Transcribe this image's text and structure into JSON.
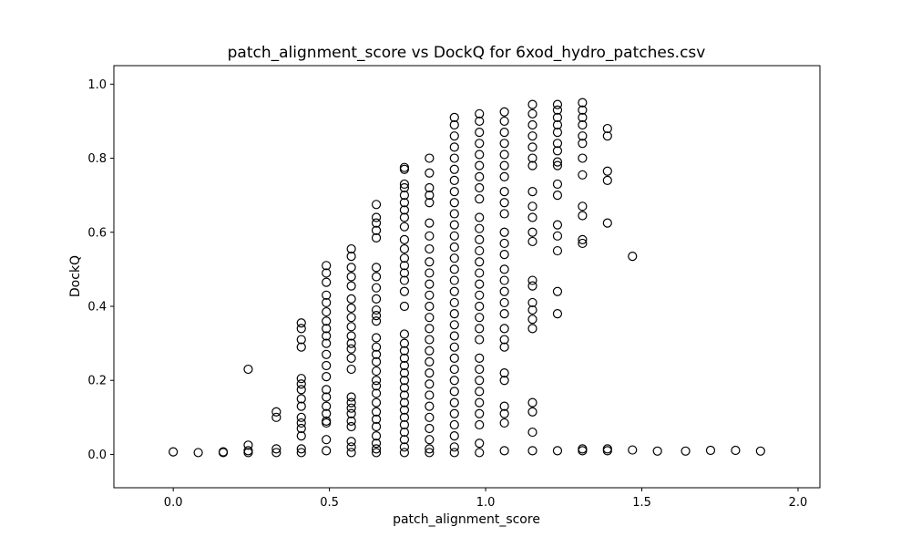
{
  "chart_data": {
    "type": "scatter",
    "title": "patch_alignment_score vs DockQ for 6xod_hydro_patches.csv",
    "xlabel": "patch_alignment_score",
    "ylabel": "DockQ",
    "xlim": [
      -0.19,
      2.07
    ],
    "ylim": [
      -0.09,
      1.05
    ],
    "xticks": [
      0.0,
      0.5,
      1.0,
      1.5,
      2.0
    ],
    "xtick_labels": [
      "0.0",
      "0.5",
      "1.0",
      "1.5",
      "2.0"
    ],
    "yticks": [
      0.0,
      0.2,
      0.4,
      0.6,
      0.8,
      1.0
    ],
    "ytick_labels": [
      "0.0",
      "0.2",
      "0.4",
      "0.6",
      "0.8",
      "1.0"
    ],
    "grid": false,
    "marker": "open-circle",
    "marker_color": "#000000",
    "series": [
      {
        "name": "6xod_hydro_patches",
        "points": [
          [
            0.0,
            0.007
          ],
          [
            0.08,
            0.005
          ],
          [
            0.16,
            0.005
          ],
          [
            0.16,
            0.007
          ],
          [
            0.24,
            0.23
          ],
          [
            0.24,
            0.025
          ],
          [
            0.24,
            0.01
          ],
          [
            0.24,
            0.005
          ],
          [
            0.33,
            0.115
          ],
          [
            0.33,
            0.1
          ],
          [
            0.33,
            0.015
          ],
          [
            0.33,
            0.005
          ],
          [
            0.41,
            0.355
          ],
          [
            0.41,
            0.34
          ],
          [
            0.41,
            0.31
          ],
          [
            0.41,
            0.29
          ],
          [
            0.41,
            0.205
          ],
          [
            0.41,
            0.19
          ],
          [
            0.41,
            0.175
          ],
          [
            0.41,
            0.15
          ],
          [
            0.41,
            0.13
          ],
          [
            0.41,
            0.1
          ],
          [
            0.41,
            0.085
          ],
          [
            0.41,
            0.07
          ],
          [
            0.41,
            0.05
          ],
          [
            0.41,
            0.015
          ],
          [
            0.41,
            0.005
          ],
          [
            0.49,
            0.51
          ],
          [
            0.49,
            0.49
          ],
          [
            0.49,
            0.465
          ],
          [
            0.49,
            0.43
          ],
          [
            0.49,
            0.41
          ],
          [
            0.49,
            0.385
          ],
          [
            0.49,
            0.36
          ],
          [
            0.49,
            0.34
          ],
          [
            0.49,
            0.32
          ],
          [
            0.49,
            0.3
          ],
          [
            0.49,
            0.27
          ],
          [
            0.49,
            0.24
          ],
          [
            0.49,
            0.21
          ],
          [
            0.49,
            0.175
          ],
          [
            0.49,
            0.155
          ],
          [
            0.49,
            0.13
          ],
          [
            0.49,
            0.11
          ],
          [
            0.49,
            0.09
          ],
          [
            0.49,
            0.085
          ],
          [
            0.49,
            0.04
          ],
          [
            0.49,
            0.01
          ],
          [
            0.57,
            0.555
          ],
          [
            0.57,
            0.535
          ],
          [
            0.57,
            0.505
          ],
          [
            0.57,
            0.48
          ],
          [
            0.57,
            0.455
          ],
          [
            0.57,
            0.42
          ],
          [
            0.57,
            0.395
          ],
          [
            0.57,
            0.37
          ],
          [
            0.57,
            0.345
          ],
          [
            0.57,
            0.32
          ],
          [
            0.57,
            0.3
          ],
          [
            0.57,
            0.285
          ],
          [
            0.57,
            0.26
          ],
          [
            0.57,
            0.23
          ],
          [
            0.57,
            0.155
          ],
          [
            0.57,
            0.14
          ],
          [
            0.57,
            0.125
          ],
          [
            0.57,
            0.11
          ],
          [
            0.57,
            0.09
          ],
          [
            0.57,
            0.075
          ],
          [
            0.57,
            0.035
          ],
          [
            0.57,
            0.02
          ],
          [
            0.57,
            0.005
          ],
          [
            0.65,
            0.675
          ],
          [
            0.65,
            0.64
          ],
          [
            0.65,
            0.625
          ],
          [
            0.65,
            0.605
          ],
          [
            0.65,
            0.585
          ],
          [
            0.65,
            0.505
          ],
          [
            0.65,
            0.48
          ],
          [
            0.65,
            0.45
          ],
          [
            0.65,
            0.42
          ],
          [
            0.65,
            0.39
          ],
          [
            0.65,
            0.375
          ],
          [
            0.65,
            0.36
          ],
          [
            0.65,
            0.315
          ],
          [
            0.65,
            0.29
          ],
          [
            0.65,
            0.27
          ],
          [
            0.65,
            0.25
          ],
          [
            0.65,
            0.225
          ],
          [
            0.65,
            0.2
          ],
          [
            0.65,
            0.185
          ],
          [
            0.65,
            0.165
          ],
          [
            0.65,
            0.14
          ],
          [
            0.65,
            0.115
          ],
          [
            0.65,
            0.095
          ],
          [
            0.65,
            0.075
          ],
          [
            0.65,
            0.05
          ],
          [
            0.65,
            0.03
          ],
          [
            0.65,
            0.015
          ],
          [
            0.65,
            0.005
          ],
          [
            0.74,
            0.775
          ],
          [
            0.74,
            0.77
          ],
          [
            0.74,
            0.73
          ],
          [
            0.74,
            0.72
          ],
          [
            0.74,
            0.7
          ],
          [
            0.74,
            0.68
          ],
          [
            0.74,
            0.66
          ],
          [
            0.74,
            0.64
          ],
          [
            0.74,
            0.615
          ],
          [
            0.74,
            0.58
          ],
          [
            0.74,
            0.555
          ],
          [
            0.74,
            0.53
          ],
          [
            0.74,
            0.51
          ],
          [
            0.74,
            0.49
          ],
          [
            0.74,
            0.47
          ],
          [
            0.74,
            0.44
          ],
          [
            0.74,
            0.4
          ],
          [
            0.74,
            0.325
          ],
          [
            0.74,
            0.3
          ],
          [
            0.74,
            0.28
          ],
          [
            0.74,
            0.26
          ],
          [
            0.74,
            0.24
          ],
          [
            0.74,
            0.22
          ],
          [
            0.74,
            0.2
          ],
          [
            0.74,
            0.18
          ],
          [
            0.74,
            0.16
          ],
          [
            0.74,
            0.14
          ],
          [
            0.74,
            0.12
          ],
          [
            0.74,
            0.1
          ],
          [
            0.74,
            0.08
          ],
          [
            0.74,
            0.06
          ],
          [
            0.74,
            0.04
          ],
          [
            0.74,
            0.02
          ],
          [
            0.74,
            0.005
          ],
          [
            0.82,
            0.8
          ],
          [
            0.82,
            0.76
          ],
          [
            0.82,
            0.72
          ],
          [
            0.82,
            0.7
          ],
          [
            0.82,
            0.68
          ],
          [
            0.82,
            0.625
          ],
          [
            0.82,
            0.59
          ],
          [
            0.82,
            0.555
          ],
          [
            0.82,
            0.52
          ],
          [
            0.82,
            0.49
          ],
          [
            0.82,
            0.46
          ],
          [
            0.82,
            0.43
          ],
          [
            0.82,
            0.4
          ],
          [
            0.82,
            0.37
          ],
          [
            0.82,
            0.34
          ],
          [
            0.82,
            0.31
          ],
          [
            0.82,
            0.28
          ],
          [
            0.82,
            0.25
          ],
          [
            0.82,
            0.22
          ],
          [
            0.82,
            0.19
          ],
          [
            0.82,
            0.16
          ],
          [
            0.82,
            0.13
          ],
          [
            0.82,
            0.1
          ],
          [
            0.82,
            0.07
          ],
          [
            0.82,
            0.04
          ],
          [
            0.82,
            0.015
          ],
          [
            0.82,
            0.005
          ],
          [
            0.9,
            0.91
          ],
          [
            0.9,
            0.89
          ],
          [
            0.9,
            0.86
          ],
          [
            0.9,
            0.83
          ],
          [
            0.9,
            0.8
          ],
          [
            0.9,
            0.77
          ],
          [
            0.9,
            0.74
          ],
          [
            0.9,
            0.71
          ],
          [
            0.9,
            0.68
          ],
          [
            0.9,
            0.65
          ],
          [
            0.9,
            0.62
          ],
          [
            0.9,
            0.59
          ],
          [
            0.9,
            0.56
          ],
          [
            0.9,
            0.53
          ],
          [
            0.9,
            0.5
          ],
          [
            0.9,
            0.47
          ],
          [
            0.9,
            0.44
          ],
          [
            0.9,
            0.41
          ],
          [
            0.9,
            0.38
          ],
          [
            0.9,
            0.35
          ],
          [
            0.9,
            0.32
          ],
          [
            0.9,
            0.29
          ],
          [
            0.9,
            0.26
          ],
          [
            0.9,
            0.23
          ],
          [
            0.9,
            0.2
          ],
          [
            0.9,
            0.17
          ],
          [
            0.9,
            0.14
          ],
          [
            0.9,
            0.11
          ],
          [
            0.9,
            0.08
          ],
          [
            0.9,
            0.05
          ],
          [
            0.9,
            0.02
          ],
          [
            0.9,
            0.005
          ],
          [
            0.98,
            0.92
          ],
          [
            0.98,
            0.9
          ],
          [
            0.98,
            0.87
          ],
          [
            0.98,
            0.84
          ],
          [
            0.98,
            0.81
          ],
          [
            0.98,
            0.78
          ],
          [
            0.98,
            0.75
          ],
          [
            0.98,
            0.72
          ],
          [
            0.98,
            0.69
          ],
          [
            0.98,
            0.64
          ],
          [
            0.98,
            0.61
          ],
          [
            0.98,
            0.58
          ],
          [
            0.98,
            0.55
          ],
          [
            0.98,
            0.52
          ],
          [
            0.98,
            0.49
          ],
          [
            0.98,
            0.46
          ],
          [
            0.98,
            0.43
          ],
          [
            0.98,
            0.4
          ],
          [
            0.98,
            0.37
          ],
          [
            0.98,
            0.34
          ],
          [
            0.98,
            0.31
          ],
          [
            0.98,
            0.26
          ],
          [
            0.98,
            0.23
          ],
          [
            0.98,
            0.2
          ],
          [
            0.98,
            0.17
          ],
          [
            0.98,
            0.14
          ],
          [
            0.98,
            0.11
          ],
          [
            0.98,
            0.08
          ],
          [
            0.98,
            0.03
          ],
          [
            0.98,
            0.005
          ],
          [
            1.06,
            0.925
          ],
          [
            1.06,
            0.9
          ],
          [
            1.06,
            0.87
          ],
          [
            1.06,
            0.84
          ],
          [
            1.06,
            0.81
          ],
          [
            1.06,
            0.78
          ],
          [
            1.06,
            0.75
          ],
          [
            1.06,
            0.71
          ],
          [
            1.06,
            0.68
          ],
          [
            1.06,
            0.65
          ],
          [
            1.06,
            0.6
          ],
          [
            1.06,
            0.57
          ],
          [
            1.06,
            0.54
          ],
          [
            1.06,
            0.5
          ],
          [
            1.06,
            0.47
          ],
          [
            1.06,
            0.44
          ],
          [
            1.06,
            0.41
          ],
          [
            1.06,
            0.38
          ],
          [
            1.06,
            0.34
          ],
          [
            1.06,
            0.31
          ],
          [
            1.06,
            0.29
          ],
          [
            1.06,
            0.22
          ],
          [
            1.06,
            0.2
          ],
          [
            1.06,
            0.13
          ],
          [
            1.06,
            0.11
          ],
          [
            1.06,
            0.085
          ],
          [
            1.06,
            0.01
          ],
          [
            1.15,
            0.945
          ],
          [
            1.15,
            0.92
          ],
          [
            1.15,
            0.89
          ],
          [
            1.15,
            0.86
          ],
          [
            1.15,
            0.83
          ],
          [
            1.15,
            0.8
          ],
          [
            1.15,
            0.78
          ],
          [
            1.15,
            0.71
          ],
          [
            1.15,
            0.67
          ],
          [
            1.15,
            0.64
          ],
          [
            1.15,
            0.6
          ],
          [
            1.15,
            0.575
          ],
          [
            1.15,
            0.47
          ],
          [
            1.15,
            0.455
          ],
          [
            1.15,
            0.41
          ],
          [
            1.15,
            0.39
          ],
          [
            1.15,
            0.365
          ],
          [
            1.15,
            0.34
          ],
          [
            1.15,
            0.14
          ],
          [
            1.15,
            0.115
          ],
          [
            1.15,
            0.06
          ],
          [
            1.15,
            0.01
          ],
          [
            1.23,
            0.945
          ],
          [
            1.23,
            0.93
          ],
          [
            1.23,
            0.91
          ],
          [
            1.23,
            0.89
          ],
          [
            1.23,
            0.87
          ],
          [
            1.23,
            0.84
          ],
          [
            1.23,
            0.82
          ],
          [
            1.23,
            0.79
          ],
          [
            1.23,
            0.78
          ],
          [
            1.23,
            0.73
          ],
          [
            1.23,
            0.7
          ],
          [
            1.23,
            0.62
          ],
          [
            1.23,
            0.59
          ],
          [
            1.23,
            0.55
          ],
          [
            1.23,
            0.44
          ],
          [
            1.23,
            0.38
          ],
          [
            1.23,
            0.01
          ],
          [
            1.31,
            0.95
          ],
          [
            1.31,
            0.93
          ],
          [
            1.31,
            0.91
          ],
          [
            1.31,
            0.89
          ],
          [
            1.31,
            0.86
          ],
          [
            1.31,
            0.84
          ],
          [
            1.31,
            0.8
          ],
          [
            1.31,
            0.755
          ],
          [
            1.31,
            0.67
          ],
          [
            1.31,
            0.645
          ],
          [
            1.31,
            0.58
          ],
          [
            1.31,
            0.57
          ],
          [
            1.31,
            0.015
          ],
          [
            1.31,
            0.01
          ],
          [
            1.39,
            0.88
          ],
          [
            1.39,
            0.86
          ],
          [
            1.39,
            0.765
          ],
          [
            1.39,
            0.74
          ],
          [
            1.39,
            0.625
          ],
          [
            1.39,
            0.015
          ],
          [
            1.39,
            0.01
          ],
          [
            1.47,
            0.535
          ],
          [
            1.47,
            0.012
          ],
          [
            1.55,
            0.009
          ],
          [
            1.64,
            0.009
          ],
          [
            1.72,
            0.011
          ],
          [
            1.8,
            0.011
          ],
          [
            1.88,
            0.009
          ]
        ]
      }
    ]
  }
}
